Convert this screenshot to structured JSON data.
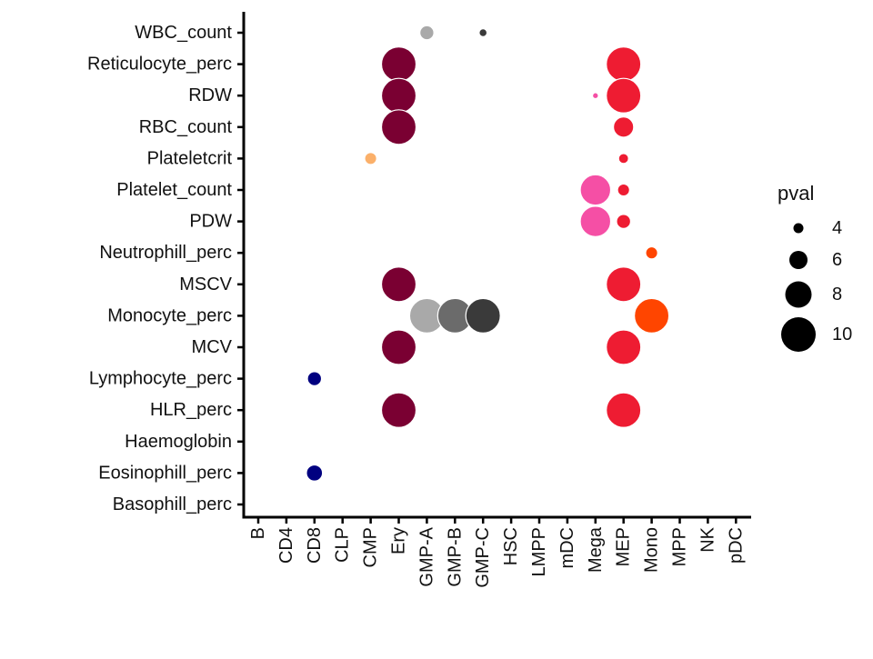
{
  "chart_data": {
    "type": "scatter",
    "subtype": "dot-plot",
    "x_categories": [
      "B",
      "CD4",
      "CD8",
      "CLP",
      "CMP",
      "Ery",
      "GMP-A",
      "GMP-B",
      "GMP-C",
      "HSC",
      "LMPP",
      "mDC",
      "Mega",
      "MEP",
      "Mono",
      "MPP",
      "NK",
      "pDC"
    ],
    "y_categories": [
      "WBC_count",
      "Reticulocyte_perc",
      "RDW",
      "RBC_count",
      "Plateletcrit",
      "Platelet_count",
      "PDW",
      "Neutrophill_perc",
      "MSCV",
      "Monocyte_perc",
      "MCV",
      "Lymphocyte_perc",
      "HLR_perc",
      "Haemoglobin",
      "Eosinophill_perc",
      "Basophill_perc"
    ],
    "points": [
      {
        "x": "GMP-A",
        "y": "WBC_count",
        "pval": 5,
        "color": "#a9a9a9"
      },
      {
        "x": "GMP-C",
        "y": "WBC_count",
        "pval": 3.5,
        "color": "#3a3a3a"
      },
      {
        "x": "Ery",
        "y": "Reticulocyte_perc",
        "pval": 10,
        "color": "#7a0032"
      },
      {
        "x": "MEP",
        "y": "Reticulocyte_perc",
        "pval": 10,
        "color": "#ee1c32"
      },
      {
        "x": "Ery",
        "y": "RDW",
        "pval": 10,
        "color": "#7a0032"
      },
      {
        "x": "Mega",
        "y": "RDW",
        "pval": 3,
        "color": "#f54fa5"
      },
      {
        "x": "MEP",
        "y": "RDW",
        "pval": 10,
        "color": "#ee1c32"
      },
      {
        "x": "Ery",
        "y": "RBC_count",
        "pval": 10,
        "color": "#7a0032"
      },
      {
        "x": "MEP",
        "y": "RBC_count",
        "pval": 6.5,
        "color": "#ee1c32"
      },
      {
        "x": "CMP",
        "y": "Plateletcrit",
        "pval": 4.5,
        "color": "#fbb06a"
      },
      {
        "x": "MEP",
        "y": "Plateletcrit",
        "pval": 4,
        "color": "#ee1c32"
      },
      {
        "x": "Mega",
        "y": "Platelet_count",
        "pval": 9,
        "color": "#f54fa5"
      },
      {
        "x": "MEP",
        "y": "Platelet_count",
        "pval": 4.5,
        "color": "#ee1c32"
      },
      {
        "x": "Mega",
        "y": "PDW",
        "pval": 9,
        "color": "#f54fa5"
      },
      {
        "x": "MEP",
        "y": "PDW",
        "pval": 5,
        "color": "#ee1c32"
      },
      {
        "x": "Mono",
        "y": "Neutrophill_perc",
        "pval": 4.5,
        "color": "#ff4500"
      },
      {
        "x": "Ery",
        "y": "MSCV",
        "pval": 10,
        "color": "#7a0032"
      },
      {
        "x": "MEP",
        "y": "MSCV",
        "pval": 10,
        "color": "#ee1c32"
      },
      {
        "x": "GMP-A",
        "y": "Monocyte_perc",
        "pval": 10,
        "color": "#a9a9a9"
      },
      {
        "x": "GMP-B",
        "y": "Monocyte_perc",
        "pval": 10,
        "color": "#6b6b6b"
      },
      {
        "x": "GMP-C",
        "y": "Monocyte_perc",
        "pval": 10,
        "color": "#3a3a3a"
      },
      {
        "x": "Mono",
        "y": "Monocyte_perc",
        "pval": 10,
        "color": "#ff4500"
      },
      {
        "x": "Ery",
        "y": "MCV",
        "pval": 10,
        "color": "#7a0032"
      },
      {
        "x": "MEP",
        "y": "MCV",
        "pval": 10,
        "color": "#ee1c32"
      },
      {
        "x": "CD8",
        "y": "Lymphocyte_perc",
        "pval": 5,
        "color": "#000080"
      },
      {
        "x": "Ery",
        "y": "HLR_perc",
        "pval": 10,
        "color": "#7a0032"
      },
      {
        "x": "MEP",
        "y": "HLR_perc",
        "pval": 10,
        "color": "#ee1c32"
      },
      {
        "x": "CD8",
        "y": "Eosinophill_perc",
        "pval": 5.5,
        "color": "#000080"
      }
    ],
    "size_legend": {
      "title": "pval",
      "entries": [
        {
          "label": "4",
          "value": 4
        },
        {
          "label": "6",
          "value": 6
        },
        {
          "label": "8",
          "value": 8
        },
        {
          "label": "10",
          "value": 10
        }
      ]
    },
    "legend_position": "right",
    "grid": false,
    "title": "",
    "xlabel": "",
    "ylabel": ""
  }
}
